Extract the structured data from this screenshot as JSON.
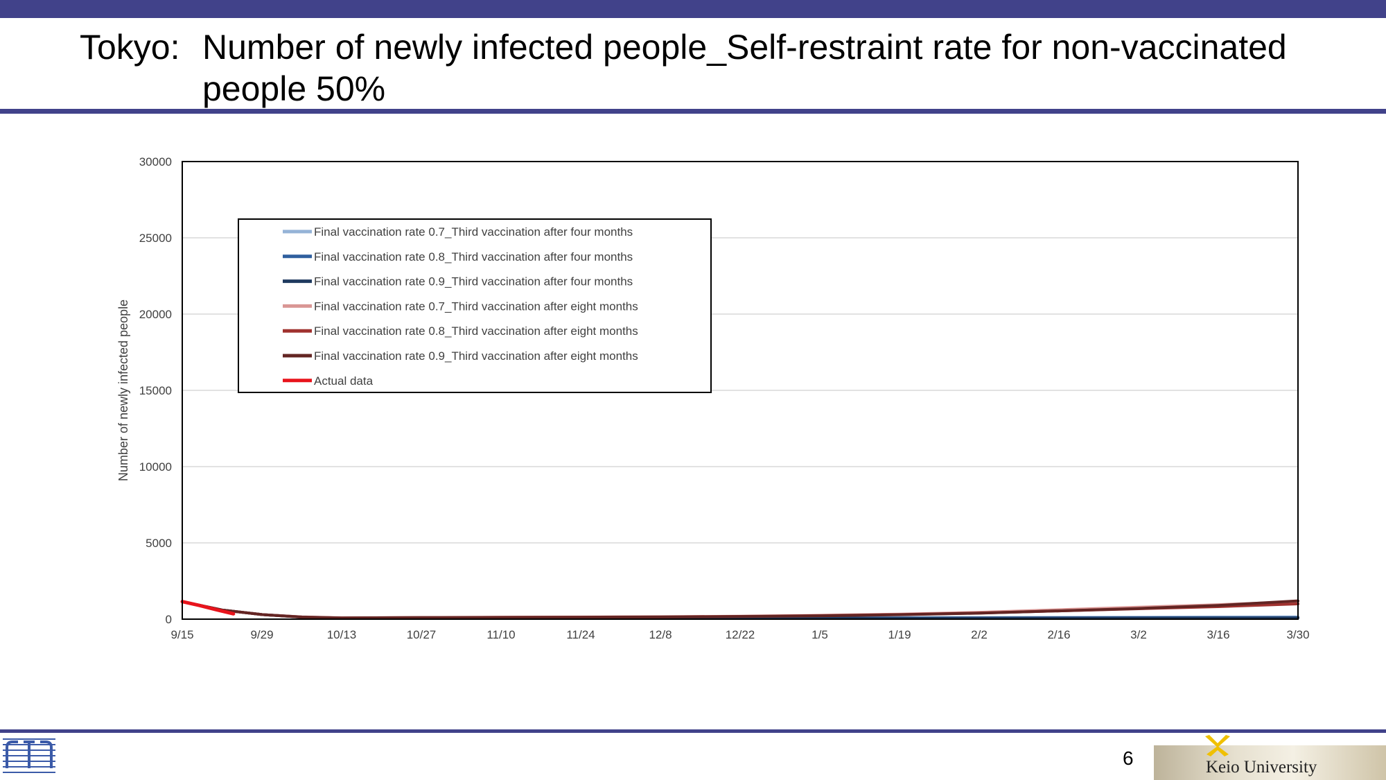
{
  "slide": {
    "title_prefix": "Tokyo:",
    "title_main": "Number of newly infected people_Self-restraint rate for non-vaccinated people 50%",
    "page_number": "6",
    "university": "Keio University"
  },
  "colors": {
    "brand_bar": "#41428a",
    "s07_4m": "#95b3d7",
    "s08_4m": "#2f5f9e",
    "s09_4m": "#1f3a5f",
    "s07_8m": "#d99694",
    "s08_8m": "#a0322f",
    "s09_8m": "#632523",
    "actual": "#e8141c"
  },
  "chart_data": {
    "type": "line",
    "title": "",
    "xlabel": "",
    "ylabel": "Number of newly infected people",
    "ylim": [
      0,
      30000
    ],
    "yticks": [
      0,
      5000,
      10000,
      15000,
      20000,
      25000,
      30000
    ],
    "x_dates": [
      "9/15",
      "9/29",
      "10/13",
      "10/27",
      "11/10",
      "11/24",
      "12/8",
      "12/22",
      "1/5",
      "1/19",
      "2/2",
      "2/16",
      "3/2",
      "3/16",
      "3/30"
    ],
    "grid": "horizontal",
    "legend_position": "upper-left",
    "series": [
      {
        "name": "Final vaccination rate 0.7_Third vaccination after four months",
        "color": "#95b3d7",
        "x": [
          "9/15",
          "9/22",
          "9/29",
          "10/6",
          "10/13",
          "10/27",
          "11/10",
          "11/24",
          "12/8",
          "12/22",
          "1/5",
          "1/19",
          "2/2",
          "2/16",
          "3/2",
          "3/16",
          "3/30"
        ],
        "values": [
          1150,
          600,
          300,
          150,
          80,
          70,
          70,
          70,
          80,
          90,
          90,
          100,
          110,
          120,
          130,
          140,
          150
        ]
      },
      {
        "name": "Final vaccination rate 0.8_Third vaccination after four months",
        "color": "#2f5f9e",
        "x": [
          "9/15",
          "9/22",
          "9/29",
          "10/6",
          "10/13",
          "10/27",
          "11/10",
          "11/24",
          "12/8",
          "12/22",
          "1/5",
          "1/19",
          "2/2",
          "2/16",
          "3/2",
          "3/16",
          "3/30"
        ],
        "values": [
          1150,
          600,
          300,
          140,
          70,
          60,
          60,
          60,
          65,
          70,
          70,
          75,
          80,
          85,
          90,
          95,
          100
        ]
      },
      {
        "name": "Final vaccination rate 0.9_Third vaccination after four months",
        "color": "#1f3a5f",
        "x": [
          "9/15",
          "9/22",
          "9/29",
          "10/6",
          "10/13",
          "10/27",
          "11/10",
          "11/24",
          "12/8",
          "12/22",
          "1/5",
          "1/19",
          "2/2",
          "2/16",
          "3/2",
          "3/16",
          "3/30"
        ],
        "values": [
          1150,
          600,
          300,
          130,
          60,
          50,
          50,
          50,
          55,
          60,
          60,
          60,
          65,
          70,
          70,
          75,
          80
        ]
      },
      {
        "name": "Final vaccination rate 0.7_Third vaccination after eight months",
        "color": "#d99694",
        "x": [
          "9/15",
          "9/22",
          "9/29",
          "10/6",
          "10/13",
          "10/27",
          "11/10",
          "11/24",
          "12/8",
          "12/22",
          "1/5",
          "1/19",
          "2/2",
          "2/16",
          "3/2",
          "3/16",
          "3/30"
        ],
        "values": [
          1150,
          600,
          300,
          150,
          90,
          110,
          130,
          140,
          160,
          190,
          250,
          330,
          450,
          620,
          780,
          950,
          1150
        ]
      },
      {
        "name": "Final vaccination rate 0.8_Third vaccination after eight months",
        "color": "#a0322f",
        "x": [
          "9/15",
          "9/22",
          "9/29",
          "10/6",
          "10/13",
          "10/27",
          "11/10",
          "11/24",
          "12/8",
          "12/22",
          "1/5",
          "1/19",
          "2/2",
          "2/16",
          "3/2",
          "3/16",
          "3/30"
        ],
        "values": [
          1150,
          600,
          300,
          140,
          80,
          100,
          120,
          130,
          150,
          180,
          230,
          300,
          400,
          540,
          680,
          820,
          1000
        ]
      },
      {
        "name": "Final vaccination rate 0.9_Third vaccination after eight months",
        "color": "#632523",
        "x": [
          "9/15",
          "9/22",
          "9/29",
          "10/6",
          "10/13",
          "10/27",
          "11/10",
          "11/24",
          "12/8",
          "12/22",
          "1/5",
          "1/19",
          "2/2",
          "2/16",
          "3/2",
          "3/16",
          "3/30"
        ],
        "values": [
          1150,
          600,
          300,
          130,
          80,
          100,
          110,
          120,
          140,
          170,
          220,
          290,
          390,
          540,
          700,
          900,
          1200
        ]
      },
      {
        "name": "Actual data",
        "color": "#e8141c",
        "x": [
          "9/15",
          "9/18",
          "9/21",
          "9/24"
        ],
        "values": [
          1150,
          900,
          620,
          350
        ]
      }
    ]
  }
}
